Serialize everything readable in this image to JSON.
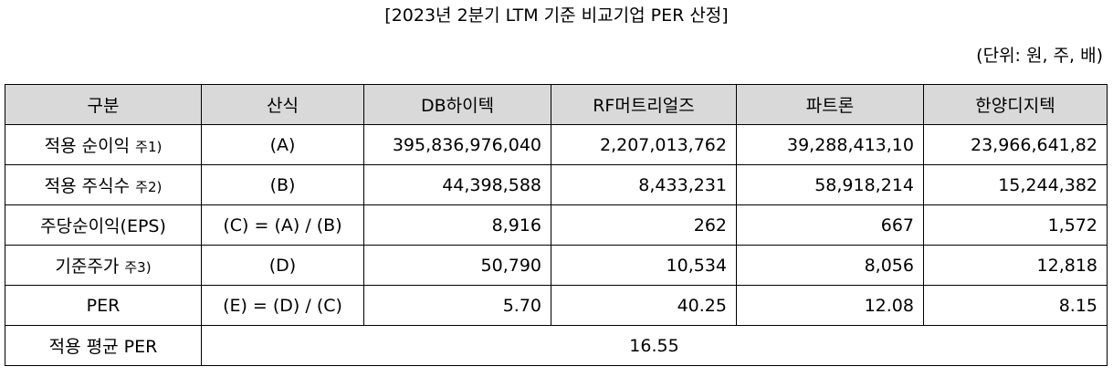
{
  "title": "[2023년 2분기 LTM 기준 비교기업 PER 산정]",
  "unit_note": "(단위: 원, 주, 배)",
  "table": {
    "headers": [
      "구분",
      "산식",
      "DB하이텍",
      "RF머트리얼즈",
      "파트론",
      "한양디지텍"
    ],
    "rows": [
      {
        "label": "적용 순이익",
        "note": "주1)",
        "formula": "(A)",
        "values": [
          "395,836,976,040",
          "2,207,013,762",
          "39,288,413,10",
          "23,966,641,82"
        ]
      },
      {
        "label": "적용 주식수",
        "note": "주2)",
        "formula": "(B)",
        "values": [
          "44,398,588",
          "8,433,231",
          "58,918,214",
          "15,244,382"
        ]
      },
      {
        "label": "주당순이익(EPS)",
        "note": "",
        "formula": "(C) = (A) / (B)",
        "values": [
          "8,916",
          "262",
          "667",
          "1,572"
        ]
      },
      {
        "label": "기준주가",
        "note": "주3)",
        "formula": "(D)",
        "values": [
          "50,790",
          "10,534",
          "8,056",
          "12,818"
        ]
      },
      {
        "label": "PER",
        "note": "",
        "formula": "(E) = (D) / (C)",
        "values": [
          "5.70",
          "40.25",
          "12.08",
          "8.15"
        ]
      }
    ],
    "summary": {
      "label": "적용 평균 PER",
      "value": "16.55"
    }
  }
}
